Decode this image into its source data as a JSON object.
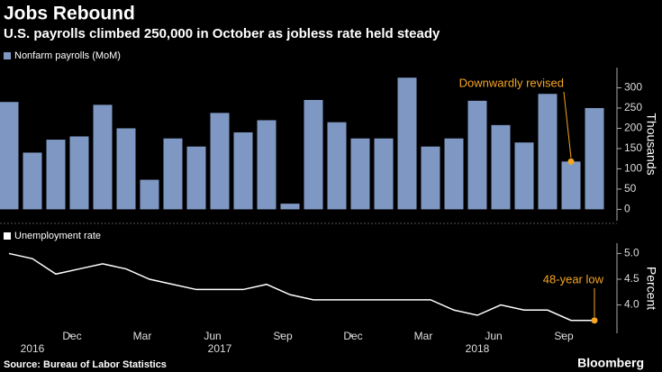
{
  "chart_data": [
    {
      "type": "bar",
      "title": "Jobs Rebound",
      "subtitle": "U.S. payrolls climbed 250,000 in October as jobless rate held steady",
      "legend": "Nonfarm payrolls (MoM)",
      "y_label": "Thousands",
      "color": "#7f98c3",
      "values": [
        265,
        140,
        172,
        180,
        258,
        200,
        73,
        175,
        155,
        238,
        190,
        220,
        14,
        270,
        215,
        175,
        175,
        325,
        155,
        175,
        268,
        208,
        165,
        285,
        118,
        250
      ],
      "ylim": [
        -28,
        350
      ],
      "yticks": [
        0,
        50,
        100,
        150,
        200,
        250,
        300
      ],
      "annotation": {
        "text": "Downwardly revised",
        "index": 24
      },
      "annotation_color": "#f5a623"
    },
    {
      "type": "line",
      "legend": "Unemployment rate",
      "y_label": "Percent",
      "color": "#ffffff",
      "categories": [
        null,
        null,
        null,
        "Dec",
        null,
        null,
        "Mar",
        null,
        null,
        "Jun",
        null,
        null,
        "Sep",
        null,
        null,
        "Dec",
        null,
        null,
        "Mar",
        null,
        null,
        "Jun",
        null,
        null,
        "Sep",
        null
      ],
      "year_labels": [
        null,
        "2016",
        null,
        null,
        null,
        null,
        null,
        null,
        null,
        "2017",
        null,
        null,
        null,
        null,
        null,
        null,
        null,
        null,
        null,
        null,
        "2018",
        null,
        null,
        null,
        null,
        null
      ],
      "values": [
        5.0,
        4.9,
        4.6,
        4.7,
        4.8,
        4.7,
        4.5,
        4.4,
        4.3,
        4.3,
        4.3,
        4.4,
        4.2,
        4.1,
        4.1,
        4.1,
        4.1,
        4.1,
        4.1,
        3.9,
        3.8,
        4.0,
        3.9,
        3.9,
        3.7,
        3.7
      ],
      "ylim": [
        3.45,
        5.2
      ],
      "yticks": [
        {
          "value": 4,
          "label": "4.0"
        },
        4.5,
        {
          "value": 5,
          "label": "5.0"
        }
      ],
      "annotation": {
        "text": "48-year low",
        "index": 25
      },
      "annotation_color": "#f5a623"
    }
  ],
  "footer": {
    "source": "Source: Bureau of Labor Statistics",
    "logo": "Bloomberg"
  }
}
